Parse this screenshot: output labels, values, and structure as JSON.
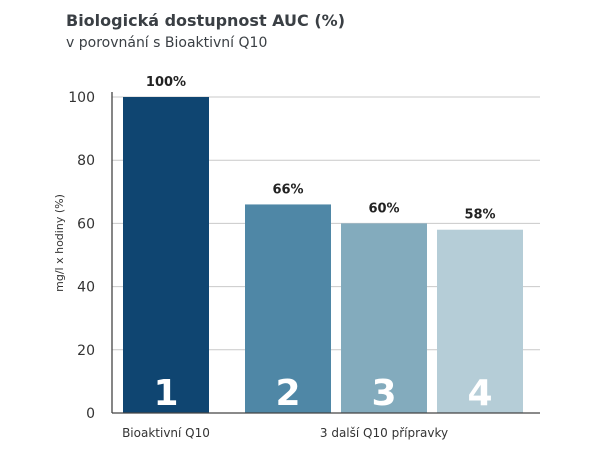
{
  "chart_data": {
    "type": "bar",
    "title": "Biologická dostupnost AUC (%)",
    "subtitle": "v porovnání s Bioaktivní Q10",
    "ylabel": "mg/l x hodiny (%)",
    "xlabel": "",
    "ylim": [
      0,
      100
    ],
    "yticks": [
      "0",
      "20",
      "40",
      "60",
      "80",
      "100"
    ],
    "grid": true,
    "bars": [
      {
        "number": "1",
        "value": 100,
        "label": "100%",
        "color": "#0f4571"
      },
      {
        "number": "2",
        "value": 66,
        "label": "66%",
        "color": "#4f87a6"
      },
      {
        "number": "3",
        "value": 60,
        "label": "60%",
        "color": "#83abbd"
      },
      {
        "number": "4",
        "value": 58,
        "label": "58%",
        "color": "#b5cdd7"
      }
    ],
    "groups": [
      {
        "label": "Bioaktivní Q10"
      },
      {
        "label": "3 další Q10 přípravky"
      }
    ]
  }
}
